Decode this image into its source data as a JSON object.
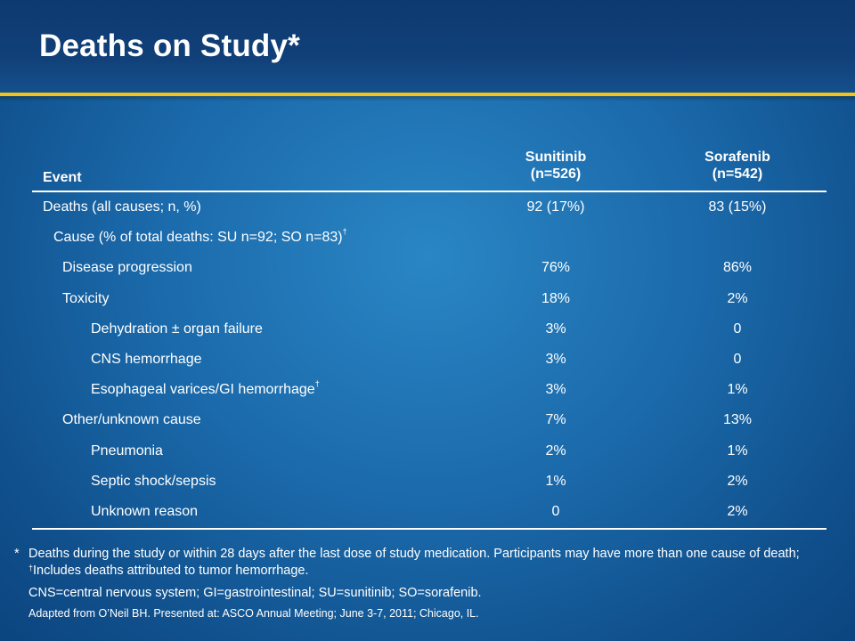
{
  "slide": {
    "title": "Deaths on Study*"
  },
  "table": {
    "headers": {
      "event": "Event",
      "col1_line1": "Sunitinib",
      "col1_line2": "(n=526)",
      "col2_line1": "Sorafenib",
      "col2_line2": "(n=542)"
    },
    "rows": [
      {
        "label": "Deaths (all causes; n, %)",
        "sunitinib": "92 (17%)",
        "sorafenib": "83 (15%)"
      },
      {
        "label": "Cause (% of total deaths: SU n=92; SO n=83)",
        "mark": "†",
        "sunitinib": "",
        "sorafenib": ""
      },
      {
        "label": "Disease progression",
        "sunitinib": "76%",
        "sorafenib": "86%"
      },
      {
        "label": "Toxicity",
        "sunitinib": "18%",
        "sorafenib": "2%"
      },
      {
        "label": "Dehydration ± organ failure",
        "sunitinib": "3%",
        "sorafenib": "0"
      },
      {
        "label": "CNS hemorrhage",
        "sunitinib": "3%",
        "sorafenib": "0"
      },
      {
        "label": "Esophageal varices/GI hemorrhage",
        "mark": "†",
        "sunitinib": "3%",
        "sorafenib": "1%"
      },
      {
        "label": "Other/unknown cause",
        "sunitinib": "7%",
        "sorafenib": "13%"
      },
      {
        "label": "Pneumonia",
        "sunitinib": "2%",
        "sorafenib": "1%"
      },
      {
        "label": "Septic shock/sepsis",
        "sunitinib": "1%",
        "sorafenib": "2%"
      },
      {
        "label": "Unknown reason",
        "sunitinib": "0",
        "sorafenib": "2%"
      }
    ]
  },
  "footnotes": {
    "star": "*",
    "note1_a": "Deaths during the study or within 28 days after the last dose of study medication. Participants may have more than one cause of death; ",
    "dagger": "†",
    "note1_b": "Includes deaths attributed to tumor hemorrhage.",
    "abbreviations": "CNS=central nervous system; GI=gastrointestinal; SU=sunitinib; SO=sorafenib.",
    "source": "Adapted from O’Neil BH. Presented at: ASCO Annual Meeting; June 3-7, 2011; Chicago, IL."
  },
  "colors": {
    "header_bg": "#113f78",
    "accent_line": "#f2c418",
    "body_bg": "#1b6aab",
    "text": "#ffffff"
  }
}
